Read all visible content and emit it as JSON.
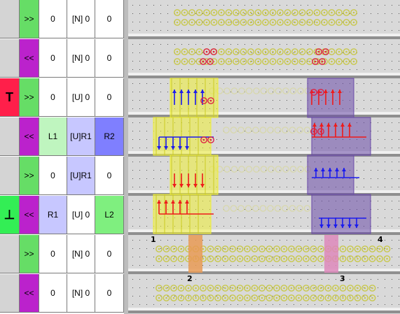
{
  "control_table": {
    "rows": [
      {
        "gate": "",
        "dir": ">>",
        "dir_kind": "fwd",
        "a": "0",
        "b": "[N] 0",
        "c": "0"
      },
      {
        "gate": "",
        "dir": "<<",
        "dir_kind": "bwd",
        "a": "0",
        "b": "[N] 0",
        "c": "0"
      },
      {
        "gate": "T",
        "dir": ">>",
        "dir_kind": "fwd",
        "a": "0",
        "b": "[U] 0",
        "c": "0"
      },
      {
        "gate": "",
        "dir": "<<",
        "dir_kind": "bwd",
        "a": "L1",
        "b": "[U]R1",
        "c": "R2"
      },
      {
        "gate": "",
        "dir": ">>",
        "dir_kind": "fwd",
        "a": "0",
        "b": "[U]R1",
        "c": "0"
      },
      {
        "gate": "⊥",
        "dir": "<<",
        "dir_kind": "bwd",
        "a": "R1",
        "b": "[U] 0",
        "c": "L2"
      },
      {
        "gate": "",
        "dir": ">>",
        "dir_kind": "fwd",
        "a": "0",
        "b": "[N] 0",
        "c": "0"
      },
      {
        "gate": "",
        "dir": "<<",
        "dir_kind": "bwd",
        "a": "0",
        "b": "[N] 0",
        "c": "0"
      }
    ]
  },
  "canvas": {
    "markers": [
      "1",
      "2",
      "3",
      "4"
    ]
  },
  "colors": {
    "forward": "#66dd66",
    "backward": "#bb22cc",
    "gate_top": "#ff1f4a",
    "gate_bottom": "#33ee55",
    "lane_bg": "#d9d9d9",
    "lane_highlight": "#f0f0f0",
    "lane_shadow": "#8f8f8f",
    "atom_yellow": "#c8c84a",
    "atom_red": "#dd2244",
    "yellow_block": "#eeee33",
    "purple_block": "#6a4aa8",
    "arrow_blue": "#1a1aee",
    "arrow_red": "#ee1a1a",
    "orange_pillar": "#e89a55",
    "pink_pillar": "#dd88bb"
  }
}
